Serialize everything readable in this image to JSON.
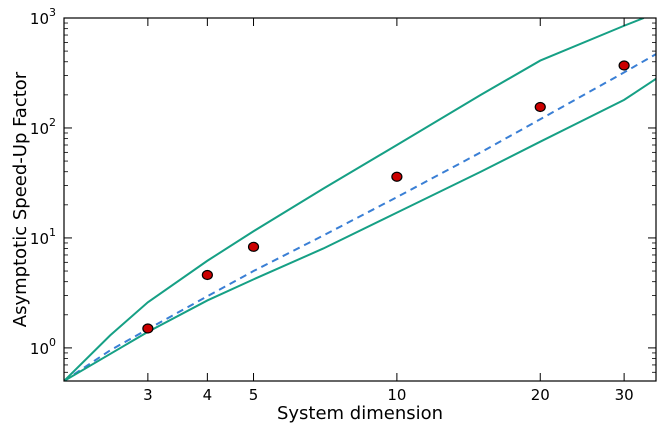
{
  "chart_data": {
    "type": "line",
    "xlabel": "System dimension",
    "ylabel": "Asymptotic Speed-Up Factor",
    "xscale": "log",
    "yscale": "log",
    "xlim": [
      2,
      35
    ],
    "ylim": [
      0.5,
      1000
    ],
    "grid": false,
    "xticks": [
      {
        "value": 3,
        "label": "3"
      },
      {
        "value": 4,
        "label": "4"
      },
      {
        "value": 5,
        "label": "5"
      },
      {
        "value": 10,
        "label": "10"
      },
      {
        "value": 20,
        "label": "20"
      },
      {
        "value": 30,
        "label": "30"
      }
    ],
    "yticks": [
      {
        "value": 1,
        "base": "10",
        "exp": "0"
      },
      {
        "value": 10,
        "base": "10",
        "exp": "1"
      },
      {
        "value": 100,
        "base": "10",
        "exp": "2"
      },
      {
        "value": 1000,
        "base": "10",
        "exp": "3"
      }
    ],
    "series": [
      {
        "style": "scatter",
        "color": "#cc0000",
        "x": [
          3,
          4,
          5,
          10,
          20,
          30
        ],
        "y": [
          1.5,
          4.6,
          8.3,
          36,
          155,
          370
        ]
      },
      {
        "style": "dashed-line",
        "color": "#3a7fd5",
        "x": [
          2,
          2.5,
          3,
          4,
          5,
          7,
          10,
          15,
          20,
          30,
          35
        ],
        "y": [
          0.5,
          0.95,
          1.48,
          2.95,
          5.0,
          10.5,
          23.5,
          60,
          120,
          320,
          470
        ]
      },
      {
        "style": "solid-line",
        "color": "#16a085",
        "x": [
          2,
          2.5,
          3,
          4,
          5,
          7,
          10,
          15,
          20,
          30,
          33
        ],
        "y": [
          0.5,
          1.3,
          2.6,
          6.2,
          11.5,
          28,
          70,
          200,
          410,
          850,
          1000
        ]
      },
      {
        "style": "solid-line",
        "color": "#16a085",
        "x": [
          2,
          3,
          4,
          5,
          7,
          10,
          15,
          20,
          30,
          35
        ],
        "y": [
          0.5,
          1.4,
          2.7,
          4.2,
          8.0,
          17,
          40,
          75,
          180,
          280
        ]
      }
    ]
  }
}
